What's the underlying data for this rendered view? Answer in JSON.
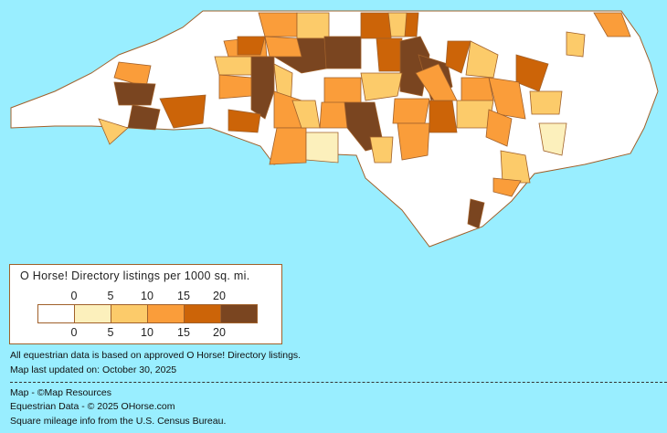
{
  "legend": {
    "title": "O Horse! Directory listings per 1000 sq. mi.",
    "top_ticks": [
      "0",
      "5",
      "10",
      "15",
      "20"
    ],
    "bottom_ticks": [
      "0",
      "5",
      "10",
      "15",
      "20"
    ],
    "colors": [
      "#FFFFFF",
      "#FCF0BC",
      "#FCCB6A",
      "#FA9D3A",
      "#CC6408",
      "#7A4520"
    ]
  },
  "notes": {
    "basis": "All equestrian data is based on approved O Horse! Directory listings.",
    "updated": "Map last updated on: October 30, 2025",
    "map_credit": "Map - ©Map Resources",
    "data_credit": "Equestrian Data - © 2025 OHorse.com",
    "census_credit": "Square mileage info from the U.S. Census Bureau."
  },
  "colors": {
    "background": "#99EEFF",
    "border": "#A0602A"
  },
  "county_levels": [
    3,
    2,
    4,
    5,
    5,
    3,
    4,
    4,
    5,
    5,
    4,
    2,
    3,
    2,
    3,
    4,
    5,
    5,
    5,
    3,
    4,
    2,
    2,
    3,
    3,
    1,
    2,
    3,
    3,
    5,
    2,
    2,
    3,
    3,
    4,
    3,
    2,
    4,
    3,
    2,
    1,
    3,
    2,
    5,
    3,
    2,
    2,
    3,
    3,
    4
  ]
}
